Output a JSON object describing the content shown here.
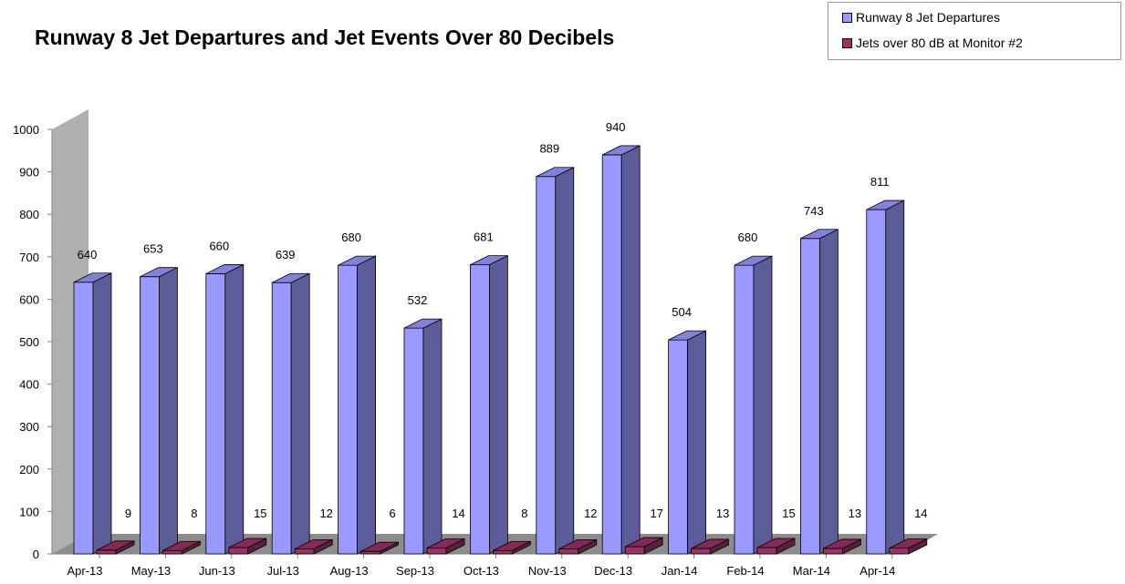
{
  "chart_data": {
    "type": "bar",
    "title": "Runway 8 Jet Departures and Jet Events Over 80 Decibels",
    "categories": [
      "Apr-13",
      "May-13",
      "Jun-13",
      "Jul-13",
      "Aug-13",
      "Sep-13",
      "Oct-13",
      "Nov-13",
      "Dec-13",
      "Jan-14",
      "Feb-14",
      "Mar-14",
      "Apr-14"
    ],
    "series": [
      {
        "name": "Runway 8 Jet Departures",
        "color": "#9999ff",
        "values": [
          640,
          653,
          660,
          639,
          680,
          532,
          681,
          889,
          940,
          504,
          680,
          743,
          811
        ]
      },
      {
        "name": "Jets over 80 dB at Monitor #2",
        "color": "#993366",
        "values": [
          9,
          8,
          15,
          12,
          6,
          14,
          8,
          12,
          17,
          13,
          15,
          13,
          14
        ]
      }
    ],
    "ylim": [
      0,
      1000
    ],
    "yticks": [
      0,
      100,
      200,
      300,
      400,
      500,
      600,
      700,
      800,
      900,
      1000
    ],
    "legend_position": "top-right",
    "grid": false,
    "style": "3d-clustered"
  }
}
